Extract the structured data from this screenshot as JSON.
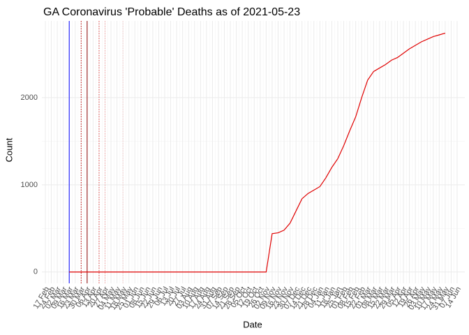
{
  "chart_data": {
    "type": "line",
    "title": "GA Coronavirus 'Probable' Deaths as of 2021-05-23",
    "x_label": "Date",
    "y_label": "Count",
    "categories": [
      "17 Feb",
      "24 Feb",
      "02 Mar",
      "09 Mar",
      "16 Mar",
      "23 Mar",
      "30 Mar",
      "06 Apr",
      "13 Apr",
      "20 Apr",
      "27 Apr",
      "04 May",
      "11 May",
      "18 May",
      "25 May",
      "01 Jun",
      "08 Jun",
      "15 Jun",
      "22 Jun",
      "29 Jun",
      "06 Jul",
      "13 Jul",
      "20 Jul",
      "27 Jul",
      "03 Aug",
      "10 Aug",
      "17 Aug",
      "24 Aug",
      "31 Aug",
      "07 Sep",
      "14 Sep",
      "21 Sep",
      "28 Sep",
      "05 Oct",
      "12 Oct",
      "19 Oct",
      "26 Oct",
      "02 Nov",
      "09 Nov",
      "16 Nov",
      "23 Nov",
      "30 Nov",
      "07 Dec",
      "14 Dec",
      "21 Dec",
      "28 Dec",
      "04 Jan",
      "11 Jan",
      "18 Jan",
      "25 Jan",
      "01 Feb",
      "08 Feb",
      "15 Feb",
      "22 Feb",
      "01 Mar",
      "08 Mar",
      "15 Mar",
      "22 Mar",
      "29 Mar",
      "05 Apr",
      "12 Apr",
      "19 Apr",
      "26 Apr",
      "03 May",
      "10 May",
      "17 May",
      "24 May",
      "31 May",
      "07 Jun",
      "14 Jun"
    ],
    "series": [
      {
        "name": "Count",
        "color": "#e00000",
        "values": [
          null,
          null,
          null,
          null,
          0,
          0,
          0,
          0,
          0,
          0,
          0,
          0,
          0,
          0,
          0,
          0,
          0,
          0,
          0,
          0,
          0,
          0,
          0,
          0,
          0,
          0,
          0,
          0,
          0,
          0,
          0,
          0,
          0,
          0,
          0,
          0,
          0,
          0,
          440,
          450,
          480,
          560,
          700,
          840,
          900,
          940,
          980,
          1080,
          1200,
          1300,
          1450,
          1620,
          1780,
          2000,
          2200,
          2300,
          2340,
          2380,
          2430,
          2460,
          2510,
          2560,
          2600,
          2640,
          2670,
          2700,
          2720,
          2740,
          null,
          null
        ]
      }
    ],
    "reference_lines": [
      {
        "x": "16 Mar",
        "color": "#0000ff",
        "style": "solid"
      },
      {
        "x": "06 Apr",
        "color": "#8b0000",
        "style": "solid"
      },
      {
        "x": "30 Mar",
        "color": "#c00000",
        "style": "dotted"
      },
      {
        "x": "20 Apr",
        "color": "#e04040",
        "style": "dotted"
      },
      {
        "x": "27 Apr",
        "color": "#f4a0a0",
        "style": "dotted"
      },
      {
        "x": "18 May",
        "color": "#f8c8c8",
        "style": "dotted"
      }
    ],
    "ylim": [
      -130,
      2880
    ],
    "yticks": [
      0,
      1000,
      2000
    ],
    "grid": true
  }
}
